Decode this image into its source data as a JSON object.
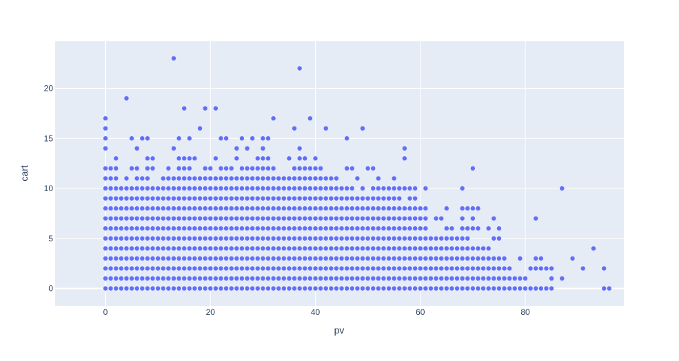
{
  "chart_data": {
    "type": "scatter",
    "title": "",
    "xlabel": "pv",
    "ylabel": "cart",
    "xlim": [
      -9.5,
      98
    ],
    "ylim": [
      -1.8,
      24.5
    ],
    "x_ticks": [
      0,
      20,
      40,
      60,
      80
    ],
    "y_ticks": [
      0,
      5,
      10,
      15,
      20
    ],
    "grid": true,
    "colors": {
      "plot_bg": "#e5ecf6",
      "grid": "#ffffff",
      "marker": "#636efa",
      "text": "#2a3f5f"
    },
    "col_x": [
      0,
      1,
      2,
      3,
      4,
      5,
      6,
      7,
      8,
      9,
      10,
      11,
      12,
      13,
      14,
      15,
      16,
      17,
      18,
      19,
      20,
      21,
      22,
      23,
      24,
      25,
      26,
      27,
      28,
      29,
      30,
      31,
      32,
      33,
      34,
      35,
      36,
      37,
      38,
      39,
      40,
      41,
      42,
      43,
      44,
      45,
      46,
      47,
      48,
      49,
      50,
      51,
      52,
      53,
      54,
      55,
      56,
      57,
      58,
      59,
      60,
      61,
      62,
      63,
      64,
      65,
      66,
      67,
      68,
      69,
      70,
      71,
      72,
      73,
      74,
      75,
      76,
      77,
      78,
      79,
      80,
      81,
      82,
      83,
      84,
      85
    ],
    "col_ymax": [
      12,
      11,
      13,
      10,
      11,
      10,
      11,
      11,
      11,
      10,
      10,
      11,
      11,
      11,
      11,
      11,
      11,
      11,
      11,
      11,
      11,
      11,
      11,
      11,
      11,
      11,
      11,
      11,
      11,
      11,
      11,
      11,
      11,
      11,
      11,
      11,
      11,
      11,
      11,
      12,
      11,
      11,
      11,
      11,
      11,
      10,
      10,
      10,
      9,
      9,
      9,
      9,
      9,
      9,
      9,
      9,
      9,
      8,
      8,
      8,
      8,
      8,
      5,
      5,
      5,
      5,
      5,
      5,
      5,
      5,
      4,
      4,
      4,
      4,
      3,
      3,
      2,
      1,
      1,
      1,
      1,
      0,
      0,
      0,
      0,
      0
    ],
    "extra_points": [
      {
        "x": 0,
        "y": 14
      },
      {
        "x": 0,
        "y": 15
      },
      {
        "x": 0,
        "y": 16
      },
      {
        "x": 0,
        "y": 17
      },
      {
        "x": 1,
        "y": 12
      },
      {
        "x": 2,
        "y": 12
      },
      {
        "x": 2,
        "y": 13
      },
      {
        "x": 4,
        "y": 19
      },
      {
        "x": 4,
        "y": 11
      },
      {
        "x": 5,
        "y": 15
      },
      {
        "x": 5,
        "y": 12
      },
      {
        "x": 6,
        "y": 14
      },
      {
        "x": 6,
        "y": 12
      },
      {
        "x": 7,
        "y": 15
      },
      {
        "x": 8,
        "y": 15
      },
      {
        "x": 8,
        "y": 13
      },
      {
        "x": 8,
        "y": 12
      },
      {
        "x": 9,
        "y": 13
      },
      {
        "x": 9,
        "y": 12
      },
      {
        "x": 12,
        "y": 12
      },
      {
        "x": 13,
        "y": 23
      },
      {
        "x": 13,
        "y": 14
      },
      {
        "x": 14,
        "y": 15
      },
      {
        "x": 14,
        "y": 13
      },
      {
        "x": 14,
        "y": 12
      },
      {
        "x": 15,
        "y": 18
      },
      {
        "x": 15,
        "y": 13
      },
      {
        "x": 15,
        "y": 12
      },
      {
        "x": 16,
        "y": 15
      },
      {
        "x": 16,
        "y": 13
      },
      {
        "x": 16,
        "y": 12
      },
      {
        "x": 17,
        "y": 13
      },
      {
        "x": 18,
        "y": 16
      },
      {
        "x": 19,
        "y": 18
      },
      {
        "x": 19,
        "y": 12
      },
      {
        "x": 20,
        "y": 12
      },
      {
        "x": 21,
        "y": 18
      },
      {
        "x": 21,
        "y": 13
      },
      {
        "x": 22,
        "y": 15
      },
      {
        "x": 22,
        "y": 12
      },
      {
        "x": 23,
        "y": 15
      },
      {
        "x": 23,
        "y": 12
      },
      {
        "x": 24,
        "y": 12
      },
      {
        "x": 25,
        "y": 14
      },
      {
        "x": 25,
        "y": 13
      },
      {
        "x": 26,
        "y": 15
      },
      {
        "x": 26,
        "y": 12
      },
      {
        "x": 27,
        "y": 14
      },
      {
        "x": 27,
        "y": 12
      },
      {
        "x": 28,
        "y": 15
      },
      {
        "x": 28,
        "y": 12
      },
      {
        "x": 29,
        "y": 13
      },
      {
        "x": 29,
        "y": 12
      },
      {
        "x": 30,
        "y": 15
      },
      {
        "x": 30,
        "y": 14
      },
      {
        "x": 30,
        "y": 13
      },
      {
        "x": 30,
        "y": 12
      },
      {
        "x": 31,
        "y": 15
      },
      {
        "x": 31,
        "y": 13
      },
      {
        "x": 31,
        "y": 12
      },
      {
        "x": 32,
        "y": 17
      },
      {
        "x": 32,
        "y": 12
      },
      {
        "x": 35,
        "y": 13
      },
      {
        "x": 36,
        "y": 16
      },
      {
        "x": 36,
        "y": 12
      },
      {
        "x": 37,
        "y": 22
      },
      {
        "x": 37,
        "y": 14
      },
      {
        "x": 37,
        "y": 13
      },
      {
        "x": 37,
        "y": 12
      },
      {
        "x": 38,
        "y": 13
      },
      {
        "x": 38,
        "y": 12
      },
      {
        "x": 39,
        "y": 17
      },
      {
        "x": 40,
        "y": 13
      },
      {
        "x": 40,
        "y": 12
      },
      {
        "x": 41,
        "y": 12
      },
      {
        "x": 42,
        "y": 16
      },
      {
        "x": 46,
        "y": 15
      },
      {
        "x": 46,
        "y": 12
      },
      {
        "x": 47,
        "y": 12
      },
      {
        "x": 48,
        "y": 11
      },
      {
        "x": 49,
        "y": 16
      },
      {
        "x": 49,
        "y": 10
      },
      {
        "x": 50,
        "y": 12
      },
      {
        "x": 51,
        "y": 12
      },
      {
        "x": 51,
        "y": 10
      },
      {
        "x": 52,
        "y": 11
      },
      {
        "x": 52,
        "y": 10
      },
      {
        "x": 53,
        "y": 10
      },
      {
        "x": 54,
        "y": 10
      },
      {
        "x": 55,
        "y": 11
      },
      {
        "x": 55,
        "y": 10
      },
      {
        "x": 56,
        "y": 10
      },
      {
        "x": 57,
        "y": 14
      },
      {
        "x": 57,
        "y": 13
      },
      {
        "x": 57,
        "y": 10
      },
      {
        "x": 58,
        "y": 10
      },
      {
        "x": 58,
        "y": 9
      },
      {
        "x": 59,
        "y": 10
      },
      {
        "x": 59,
        "y": 9
      },
      {
        "x": 61,
        "y": 10
      },
      {
        "x": 63,
        "y": 7
      },
      {
        "x": 64,
        "y": 7
      },
      {
        "x": 65,
        "y": 8
      },
      {
        "x": 65,
        "y": 6
      },
      {
        "x": 66,
        "y": 6
      },
      {
        "x": 68,
        "y": 10
      },
      {
        "x": 68,
        "y": 8
      },
      {
        "x": 68,
        "y": 7
      },
      {
        "x": 68,
        "y": 6
      },
      {
        "x": 69,
        "y": 8
      },
      {
        "x": 69,
        "y": 6
      },
      {
        "x": 70,
        "y": 12
      },
      {
        "x": 70,
        "y": 8
      },
      {
        "x": 70,
        "y": 7
      },
      {
        "x": 70,
        "y": 6
      },
      {
        "x": 71,
        "y": 8
      },
      {
        "x": 71,
        "y": 6
      },
      {
        "x": 73,
        "y": 6
      },
      {
        "x": 74,
        "y": 7
      },
      {
        "x": 74,
        "y": 5
      },
      {
        "x": 75,
        "y": 6
      },
      {
        "x": 75,
        "y": 5
      },
      {
        "x": 76,
        "y": 3
      },
      {
        "x": 77,
        "y": 2
      },
      {
        "x": 78,
        "y": 1
      },
      {
        "x": 79,
        "y": 3
      },
      {
        "x": 79,
        "y": 1
      },
      {
        "x": 81,
        "y": 2
      },
      {
        "x": 82,
        "y": 7
      },
      {
        "x": 82,
        "y": 3
      },
      {
        "x": 82,
        "y": 2
      },
      {
        "x": 83,
        "y": 3
      },
      {
        "x": 83,
        "y": 2
      },
      {
        "x": 84,
        "y": 2
      },
      {
        "x": 85,
        "y": 2
      },
      {
        "x": 85,
        "y": 1
      },
      {
        "x": 87,
        "y": 10
      },
      {
        "x": 87,
        "y": 1
      },
      {
        "x": 89,
        "y": 3
      },
      {
        "x": 91,
        "y": 2
      },
      {
        "x": 93,
        "y": 4
      },
      {
        "x": 95,
        "y": 2
      },
      {
        "x": 95,
        "y": 0
      },
      {
        "x": 96,
        "y": 0
      }
    ]
  }
}
